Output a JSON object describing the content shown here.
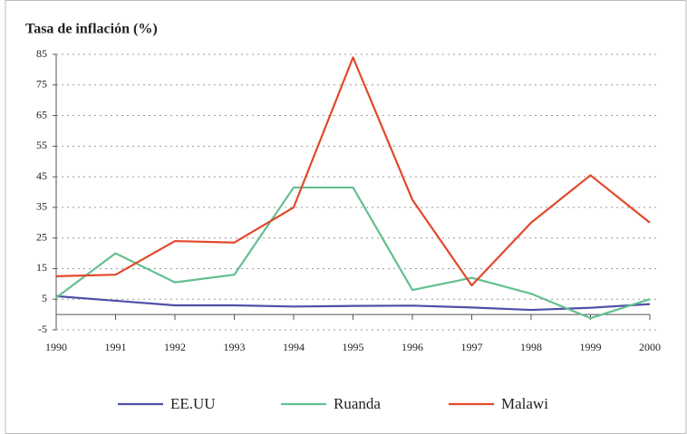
{
  "chart_data": {
    "type": "line",
    "title": "Tasa de inflación (%)",
    "categories": [
      "1990",
      "1991",
      "1992",
      "1993",
      "1994",
      "1995",
      "1996",
      "1997",
      "1998",
      "1999",
      "2000"
    ],
    "series": [
      {
        "name": "EE.UU",
        "color": "#4f4fa8",
        "values": [
          6,
          4.5,
          3,
          3,
          2.6,
          2.8,
          2.9,
          2.3,
          1.5,
          2.2,
          3.4
        ]
      },
      {
        "name": "Ruanda",
        "color": "#62c08e",
        "values": [
          5.5,
          20,
          10.5,
          13,
          41.5,
          41.5,
          8,
          12,
          6.8,
          -1.2,
          5
        ]
      },
      {
        "name": "Malawi",
        "color": "#e2482b",
        "values": [
          12.5,
          13,
          24,
          23.5,
          35,
          84,
          37.5,
          9.5,
          30,
          45.5,
          30
        ]
      }
    ],
    "ylim": [
      -5,
      85
    ],
    "yticks": [
      -5,
      5,
      15,
      25,
      35,
      45,
      55,
      65,
      75,
      85
    ],
    "grid": true,
    "legend": "bottom"
  }
}
